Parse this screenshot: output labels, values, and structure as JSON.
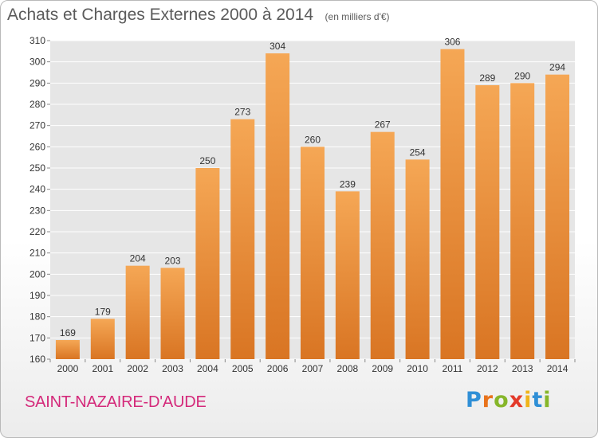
{
  "header": {
    "title": "Achats et Charges Externes 2000 à 2014",
    "unit": "(en milliers d'€)"
  },
  "footer": {
    "commune": "SAINT-NAZAIRE-D'AUDE",
    "logo_letters": [
      "P",
      "r",
      "o",
      "x",
      "i",
      "t",
      "i"
    ],
    "logo_colors": [
      "#2f8fd6",
      "#e8731c",
      "#86b62a",
      "#e33a2a",
      "#f0b41a",
      "#2f8fd6",
      "#86b62a"
    ]
  },
  "colors": {
    "bar_light": "#f5a755",
    "bar_dark": "#d97523",
    "plot_bg": "#e6e6e6",
    "grid": "#ffffff",
    "text": "#333333"
  },
  "chart_data": {
    "type": "bar",
    "title": "Achats et Charges Externes 2000 à 2014",
    "subtitle": "(en milliers d'€)",
    "categories": [
      "2000",
      "2001",
      "2002",
      "2003",
      "2004",
      "2005",
      "2006",
      "2007",
      "2008",
      "2009",
      "2010",
      "2011",
      "2012",
      "2013",
      "2014"
    ],
    "values": [
      169,
      179,
      204,
      203,
      250,
      273,
      304,
      260,
      239,
      267,
      254,
      306,
      289,
      290,
      294
    ],
    "ylim": [
      160,
      310
    ],
    "yticks": [
      160,
      170,
      180,
      190,
      200,
      210,
      220,
      230,
      240,
      250,
      260,
      270,
      280,
      290,
      300,
      310
    ],
    "grid": true,
    "data_labels": true
  }
}
